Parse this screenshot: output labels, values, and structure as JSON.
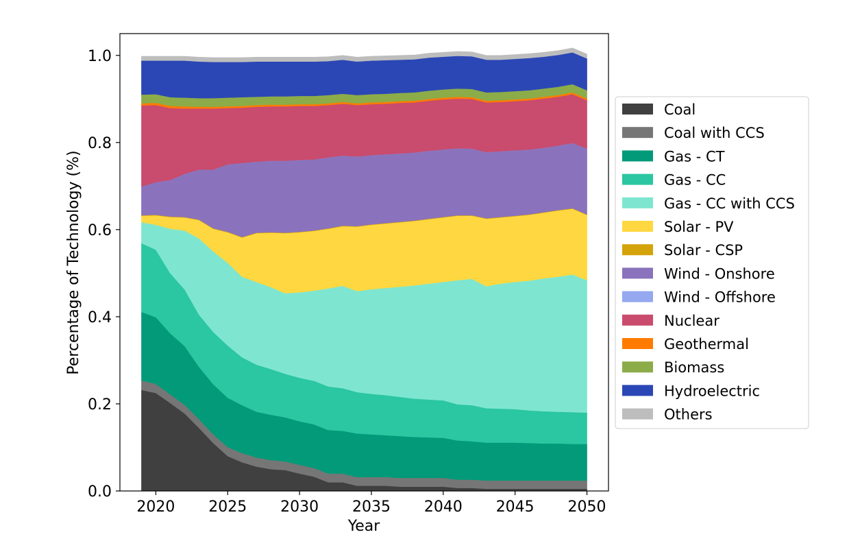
{
  "chart_data": {
    "type": "area",
    "xlabel": "Year",
    "ylabel": "Percentage of Technology (%)",
    "xlim": [
      2017.5,
      2051.5
    ],
    "ylim": [
      0,
      1.05
    ],
    "xticks": [
      2020,
      2025,
      2030,
      2035,
      2040,
      2045,
      2050
    ],
    "yticks": [
      0.0,
      0.2,
      0.4,
      0.6,
      0.8,
      1.0
    ],
    "xtick_labels": [
      "2020",
      "2025",
      "2030",
      "2035",
      "2040",
      "2045",
      "2050"
    ],
    "ytick_labels": [
      "0.0",
      "0.2",
      "0.4",
      "0.6",
      "0.8",
      "1.0"
    ],
    "legend_position": "right",
    "x": [
      2019,
      2020,
      2021,
      2022,
      2023,
      2024,
      2025,
      2026,
      2027,
      2028,
      2029,
      2030,
      2031,
      2032,
      2033,
      2034,
      2035,
      2036,
      2037,
      2038,
      2039,
      2040,
      2041,
      2042,
      2043,
      2044,
      2045,
      2046,
      2047,
      2048,
      2049,
      2050
    ],
    "series": [
      {
        "name": "Coal",
        "color": "#404040",
        "values": [
          0.232,
          0.225,
          0.202,
          0.178,
          0.145,
          0.11,
          0.08,
          0.066,
          0.056,
          0.05,
          0.048,
          0.04,
          0.033,
          0.02,
          0.02,
          0.012,
          0.012,
          0.012,
          0.01,
          0.01,
          0.01,
          0.01,
          0.007,
          0.007,
          0.005,
          0.005,
          0.005,
          0.005,
          0.005,
          0.005,
          0.005,
          0.005
        ]
      },
      {
        "name": "Coal with CCS",
        "color": "#767676",
        "values": [
          0.022,
          0.021,
          0.02,
          0.02,
          0.02,
          0.02,
          0.021,
          0.021,
          0.021,
          0.021,
          0.02,
          0.02,
          0.02,
          0.02,
          0.02,
          0.02,
          0.02,
          0.02,
          0.02,
          0.02,
          0.02,
          0.02,
          0.019,
          0.019,
          0.019,
          0.019,
          0.019,
          0.019,
          0.019,
          0.019,
          0.019,
          0.019
        ]
      },
      {
        "name": "Gas - CT",
        "color": "#029a79",
        "values": [
          0.157,
          0.153,
          0.14,
          0.135,
          0.12,
          0.115,
          0.113,
          0.11,
          0.105,
          0.104,
          0.101,
          0.1,
          0.1,
          0.1,
          0.098,
          0.1,
          0.098,
          0.096,
          0.096,
          0.094,
          0.093,
          0.092,
          0.09,
          0.088,
          0.087,
          0.087,
          0.087,
          0.086,
          0.085,
          0.085,
          0.084,
          0.084
        ]
      },
      {
        "name": "Gas - CC",
        "color": "#2bc6a2",
        "values": [
          0.158,
          0.155,
          0.138,
          0.13,
          0.12,
          0.12,
          0.12,
          0.11,
          0.108,
          0.105,
          0.1,
          0.1,
          0.1,
          0.1,
          0.098,
          0.095,
          0.093,
          0.092,
          0.09,
          0.088,
          0.087,
          0.086,
          0.083,
          0.083,
          0.079,
          0.078,
          0.077,
          0.075,
          0.074,
          0.073,
          0.073,
          0.072
        ]
      },
      {
        "name": "Gas - CC with CCS",
        "color": "#7ee6d0",
        "values": [
          0.048,
          0.057,
          0.102,
          0.135,
          0.175,
          0.185,
          0.19,
          0.185,
          0.19,
          0.188,
          0.185,
          0.196,
          0.207,
          0.225,
          0.235,
          0.232,
          0.24,
          0.246,
          0.253,
          0.26,
          0.266,
          0.272,
          0.285,
          0.29,
          0.28,
          0.287,
          0.292,
          0.298,
          0.305,
          0.31,
          0.316,
          0.304
        ]
      },
      {
        "name": "Solar - PV",
        "color": "#ffd740",
        "values": [
          0.015,
          0.022,
          0.027,
          0.03,
          0.042,
          0.052,
          0.07,
          0.09,
          0.112,
          0.125,
          0.138,
          0.138,
          0.137,
          0.137,
          0.137,
          0.148,
          0.148,
          0.148,
          0.148,
          0.148,
          0.148,
          0.148,
          0.148,
          0.145,
          0.155,
          0.152,
          0.151,
          0.151,
          0.151,
          0.152,
          0.151,
          0.15
        ]
      },
      {
        "name": "Solar - CSP",
        "color": "#d4a20a",
        "values": [
          0.001,
          0.001,
          0.001,
          0.001,
          0.001,
          0.001,
          0.001,
          0.001,
          0.001,
          0.001,
          0.001,
          0.001,
          0.001,
          0.001,
          0.001,
          0.001,
          0.001,
          0.001,
          0.001,
          0.001,
          0.001,
          0.001,
          0.001,
          0.001,
          0.001,
          0.001,
          0.001,
          0.001,
          0.001,
          0.001,
          0.001,
          0.001
        ]
      },
      {
        "name": "Wind - Onshore",
        "color": "#8a73bc",
        "values": [
          0.066,
          0.075,
          0.084,
          0.099,
          0.115,
          0.135,
          0.155,
          0.17,
          0.163,
          0.164,
          0.165,
          0.165,
          0.163,
          0.163,
          0.161,
          0.16,
          0.159,
          0.158,
          0.157,
          0.156,
          0.156,
          0.155,
          0.154,
          0.153,
          0.152,
          0.151,
          0.15,
          0.149,
          0.148,
          0.148,
          0.15,
          0.151
        ]
      },
      {
        "name": "Wind - Offshore",
        "color": "#95a8f0",
        "values": [
          0,
          0,
          0,
          0,
          0,
          0,
          0,
          0,
          0,
          0,
          0,
          0,
          0,
          0,
          0,
          0,
          0,
          0,
          0,
          0,
          0,
          0,
          0,
          0,
          0,
          0,
          0,
          0,
          0,
          0,
          0,
          0
        ]
      },
      {
        "name": "Nuclear",
        "color": "#c94b6d",
        "values": [
          0.186,
          0.177,
          0.165,
          0.15,
          0.14,
          0.14,
          0.129,
          0.127,
          0.126,
          0.125,
          0.125,
          0.124,
          0.123,
          0.12,
          0.119,
          0.118,
          0.117,
          0.116,
          0.116,
          0.115,
          0.115,
          0.115,
          0.114,
          0.114,
          0.114,
          0.113,
          0.113,
          0.113,
          0.113,
          0.112,
          0.112,
          0.111
        ]
      },
      {
        "name": "Geothermal",
        "color": "#ff7b00",
        "values": [
          0.005,
          0.005,
          0.005,
          0.005,
          0.004,
          0.004,
          0.004,
          0.004,
          0.004,
          0.004,
          0.004,
          0.004,
          0.004,
          0.004,
          0.004,
          0.004,
          0.004,
          0.004,
          0.004,
          0.004,
          0.004,
          0.004,
          0.004,
          0.004,
          0.004,
          0.004,
          0.004,
          0.004,
          0.004,
          0.004,
          0.004,
          0.004
        ]
      },
      {
        "name": "Biomass",
        "color": "#8cac4a",
        "values": [
          0.02,
          0.02,
          0.02,
          0.02,
          0.02,
          0.02,
          0.02,
          0.02,
          0.019,
          0.019,
          0.019,
          0.019,
          0.019,
          0.019,
          0.019,
          0.019,
          0.019,
          0.019,
          0.019,
          0.019,
          0.019,
          0.019,
          0.019,
          0.019,
          0.019,
          0.019,
          0.019,
          0.019,
          0.019,
          0.019,
          0.019,
          0.019
        ]
      },
      {
        "name": "Hydroelectric",
        "color": "#2b47b5",
        "values": [
          0.078,
          0.077,
          0.084,
          0.085,
          0.084,
          0.083,
          0.082,
          0.081,
          0.081,
          0.08,
          0.08,
          0.079,
          0.079,
          0.078,
          0.078,
          0.077,
          0.077,
          0.077,
          0.076,
          0.076,
          0.076,
          0.075,
          0.075,
          0.075,
          0.075,
          0.074,
          0.074,
          0.074,
          0.073,
          0.073,
          0.073,
          0.073
        ]
      },
      {
        "name": "Others",
        "color": "#bdbdbd",
        "values": [
          0.01,
          0.01,
          0.01,
          0.01,
          0.01,
          0.01,
          0.01,
          0.01,
          0.01,
          0.01,
          0.01,
          0.01,
          0.01,
          0.01,
          0.01,
          0.01,
          0.01,
          0.01,
          0.01,
          0.01,
          0.01,
          0.01,
          0.01,
          0.01,
          0.01,
          0.01,
          0.01,
          0.01,
          0.01,
          0.01,
          0.01,
          0.01
        ]
      }
    ]
  }
}
